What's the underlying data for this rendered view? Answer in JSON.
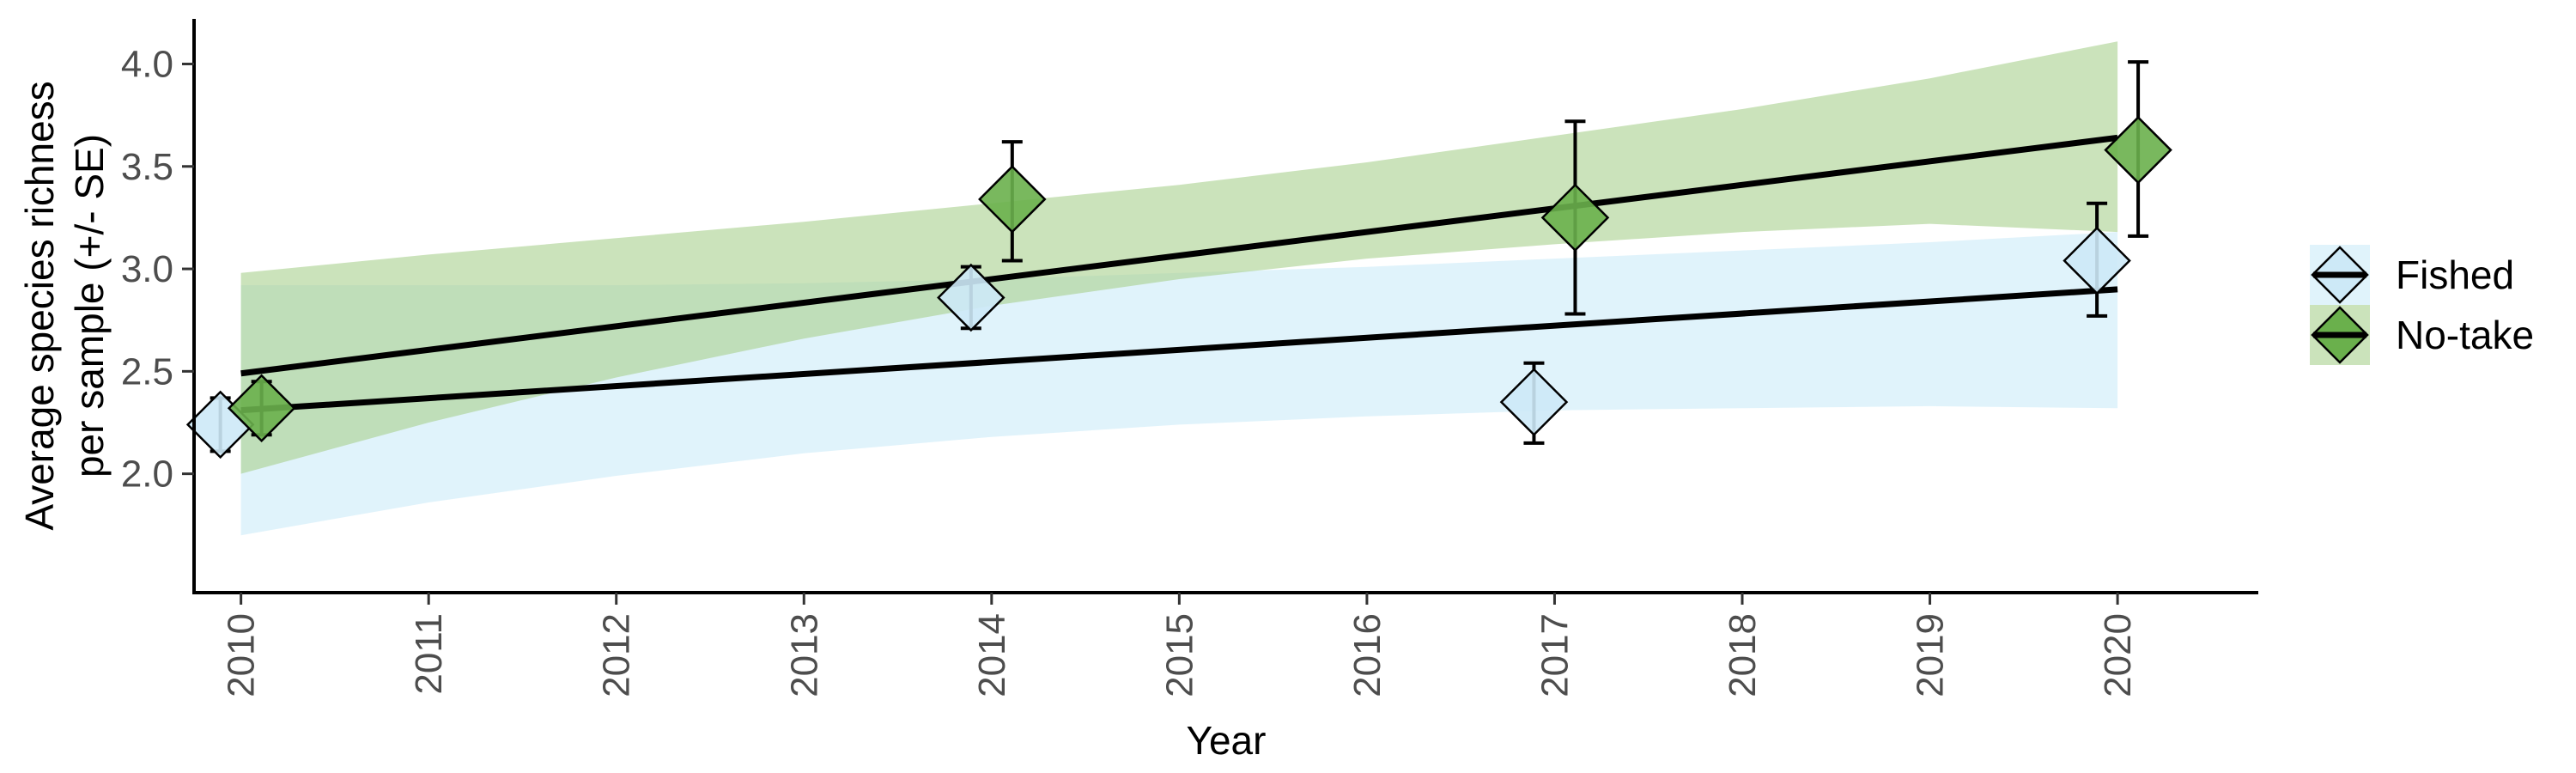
{
  "chart_data": {
    "type": "scatter",
    "xlabel": "Year",
    "ylabel_lines": [
      "Average species richness",
      "per sample (+/- SE)"
    ],
    "xlim": [
      2009.75,
      2020.75
    ],
    "ylim": [
      1.42,
      4.22
    ],
    "x_ticks": [
      "2010",
      "2011",
      "2012",
      "2013",
      "2014",
      "2015",
      "2016",
      "2017",
      "2018",
      "2019",
      "2020"
    ],
    "y_ticks": [
      "2.0",
      "2.5",
      "3.0",
      "3.5",
      "4.0"
    ],
    "grid": false,
    "legend_position": "right",
    "series": [
      {
        "name": "Fished",
        "color": "#cde9f7",
        "ribbon_color": "#d6effa",
        "x": [
          2010,
          2014,
          2017,
          2020
        ],
        "y": [
          2.24,
          2.86,
          2.35,
          3.04
        ],
        "se_low": [
          2.11,
          2.71,
          2.15,
          2.77
        ],
        "se_high": [
          2.37,
          3.01,
          2.54,
          3.32
        ],
        "trend": {
          "x": [
            2010,
            2020
          ],
          "y": [
            2.31,
            2.9
          ]
        },
        "ribbon": {
          "x": [
            2010,
            2011,
            2012,
            2013,
            2014,
            2015,
            2016,
            2017,
            2018,
            2019,
            2020
          ],
          "lower": [
            1.7,
            1.86,
            1.99,
            2.1,
            2.18,
            2.24,
            2.28,
            2.31,
            2.32,
            2.33,
            2.32
          ],
          "upper": [
            2.92,
            2.92,
            2.92,
            2.93,
            2.95,
            2.98,
            3.01,
            3.05,
            3.09,
            3.13,
            3.18
          ]
        }
      },
      {
        "name": "No-take",
        "color": "#6ab04c",
        "ribbon_color": "#a9d18e",
        "x": [
          2010,
          2014,
          2017,
          2020
        ],
        "y": [
          2.32,
          3.34,
          3.25,
          3.58
        ],
        "se_low": [
          2.19,
          3.04,
          2.78,
          3.16
        ],
        "se_high": [
          2.45,
          3.62,
          3.72,
          4.01
        ],
        "trend": {
          "x": [
            2010,
            2020
          ],
          "y": [
            2.49,
            3.64
          ]
        },
        "ribbon": {
          "x": [
            2010,
            2011,
            2012,
            2013,
            2014,
            2015,
            2016,
            2017,
            2018,
            2019,
            2020
          ],
          "lower": [
            2.0,
            2.25,
            2.47,
            2.66,
            2.82,
            2.95,
            3.05,
            3.12,
            3.18,
            3.22,
            3.18
          ],
          "upper": [
            2.98,
            3.07,
            3.15,
            3.23,
            3.32,
            3.41,
            3.52,
            3.65,
            3.78,
            3.93,
            4.11
          ]
        }
      }
    ]
  }
}
